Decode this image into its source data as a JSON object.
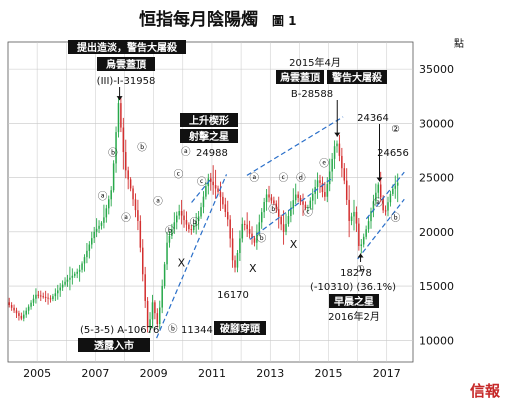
{
  "header": {
    "title": "恒指每月陰陽燭",
    "figure": "圖 1",
    "unit": "點"
  },
  "brand": "信報",
  "chart_data": {
    "type": "candlestick",
    "title": "恒指每月陰陽燭",
    "xlabel": "",
    "ylabel": "點",
    "xlim": [
      2004.0,
      2017.9
    ],
    "ylim": [
      8000,
      37500
    ],
    "x_ticks": [
      2005,
      2007,
      2009,
      2011,
      2013,
      2015,
      2017
    ],
    "y_ticks": [
      10000,
      15000,
      20000,
      25000,
      30000,
      35000
    ],
    "grid": true,
    "key_points": [
      {
        "t": 2004.0,
        "v": 13500
      },
      {
        "t": 2004.5,
        "v": 12000
      },
      {
        "t": 2005.0,
        "v": 14200
      },
      {
        "t": 2005.5,
        "v": 13800
      },
      {
        "t": 2006.0,
        "v": 15400
      },
      {
        "t": 2006.5,
        "v": 16500
      },
      {
        "t": 2007.0,
        "v": 20000
      },
      {
        "t": 2007.3,
        "v": 21000
      },
      {
        "t": 2007.6,
        "v": 24000
      },
      {
        "t": 2007.83,
        "v": 31958
      },
      {
        "t": 2008.05,
        "v": 26000
      },
      {
        "t": 2008.25,
        "v": 24000
      },
      {
        "t": 2008.5,
        "v": 21000
      },
      {
        "t": 2008.85,
        "v": 10676
      },
      {
        "t": 2009.0,
        "v": 13500
      },
      {
        "t": 2009.18,
        "v": 11344
      },
      {
        "t": 2009.5,
        "v": 19000
      },
      {
        "t": 2009.9,
        "v": 22000
      },
      {
        "t": 2010.3,
        "v": 20000
      },
      {
        "t": 2010.6,
        "v": 21500
      },
      {
        "t": 2010.9,
        "v": 24988
      },
      {
        "t": 2011.3,
        "v": 23500
      },
      {
        "t": 2011.6,
        "v": 21000
      },
      {
        "t": 2011.8,
        "v": 16170
      },
      {
        "t": 2012.1,
        "v": 21000
      },
      {
        "t": 2012.5,
        "v": 19000
      },
      {
        "t": 2012.9,
        "v": 23500
      },
      {
        "t": 2013.2,
        "v": 22500
      },
      {
        "t": 2013.5,
        "v": 20000
      },
      {
        "t": 2013.9,
        "v": 23500
      },
      {
        "t": 2014.3,
        "v": 22000
      },
      {
        "t": 2014.7,
        "v": 25000
      },
      {
        "t": 2014.9,
        "v": 23000
      },
      {
        "t": 2015.3,
        "v": 28588
      },
      {
        "t": 2015.6,
        "v": 24500
      },
      {
        "t": 2015.75,
        "v": 21000
      },
      {
        "t": 2015.95,
        "v": 22000
      },
      {
        "t": 2016.1,
        "v": 18278
      },
      {
        "t": 2016.4,
        "v": 20800
      },
      {
        "t": 2016.6,
        "v": 23000
      },
      {
        "t": 2016.75,
        "v": 24364
      },
      {
        "t": 2016.95,
        "v": 21500
      },
      {
        "t": 2017.2,
        "v": 23800
      },
      {
        "t": 2017.45,
        "v": 24656
      }
    ],
    "annotations": [
      {
        "id": "top-warning",
        "text": "提出造淡，警告大屠殺",
        "style": "box"
      },
      {
        "id": "top-cloud",
        "text": "烏雲蓋頂",
        "style": "box"
      },
      {
        "id": "top-value",
        "text": "(III)-I-31958",
        "style": "text"
      },
      {
        "id": "wedge-label",
        "text": "上升楔形",
        "style": "box"
      },
      {
        "id": "shooting-star",
        "text": "射擊之星",
        "style": "box"
      },
      {
        "id": "wave-a-value",
        "text": "24988",
        "style": "text"
      },
      {
        "id": "low-1-value",
        "text": "16170",
        "style": "text"
      },
      {
        "id": "bottom-a-value",
        "text": "(5-3-5) A-10676",
        "style": "text"
      },
      {
        "id": "bottom-buy",
        "text": "透露入市",
        "style": "box"
      },
      {
        "id": "bottom-b-value",
        "text": "11344",
        "style": "text"
      },
      {
        "id": "break-label",
        "text": "破腳穿頭",
        "style": "box"
      },
      {
        "id": "apr2015",
        "text": "2015年4月",
        "style": "text"
      },
      {
        "id": "cloud-2015",
        "text": "烏雲蓋頂",
        "style": "box"
      },
      {
        "id": "warning-2015",
        "text": "警告大屠殺",
        "style": "box"
      },
      {
        "id": "b-value-2015",
        "text": "B-28588",
        "style": "text"
      },
      {
        "id": "high-24364",
        "text": "24364",
        "style": "text"
      },
      {
        "id": "high-24656",
        "text": "24656",
        "style": "text"
      },
      {
        "id": "low-18278",
        "text": "18278",
        "style": "text"
      },
      {
        "id": "drop-18278",
        "text": "(-10310) (36.1%)",
        "style": "text"
      },
      {
        "id": "morning-star",
        "text": "早晨之星",
        "style": "box"
      },
      {
        "id": "feb2016",
        "text": "2016年2月",
        "style": "text"
      }
    ],
    "wave_labels": [
      {
        "text": "ⓑ",
        "t": 2007.6,
        "v": 27000
      },
      {
        "text": "ⓐ",
        "t": 2007.25,
        "v": 23000
      },
      {
        "text": "ⓐ",
        "t": 2008.05,
        "v": 21000
      },
      {
        "text": "ⓑ",
        "t": 2008.6,
        "v": 27500
      },
      {
        "text": "ⓐ",
        "t": 2009.15,
        "v": 22500
      },
      {
        "text": "ⓑ",
        "t": 2009.55,
        "v": 19800
      },
      {
        "text": "ⓒ",
        "t": 2009.85,
        "v": 25000
      },
      {
        "text": "X",
        "t": 2009.95,
        "v": 16800
      },
      {
        "text": "ⓑ",
        "t": 2010.4,
        "v": 20600
      },
      {
        "text": "ⓒ",
        "t": 2010.65,
        "v": 24300
      },
      {
        "text": "X",
        "t": 2012.4,
        "v": 16300
      },
      {
        "text": "ⓐ",
        "t": 2012.45,
        "v": 24700
      },
      {
        "text": "ⓑ",
        "t": 2012.7,
        "v": 19100
      },
      {
        "text": "ⓒ",
        "t": 2013.45,
        "v": 24700
      },
      {
        "text": "ⓓ",
        "t": 2014.05,
        "v": 24700
      },
      {
        "text": "ⓑ",
        "t": 2013.1,
        "v": 21800
      },
      {
        "text": "X",
        "t": 2013.8,
        "v": 18500
      },
      {
        "text": "ⓒ",
        "t": 2014.3,
        "v": 21500
      },
      {
        "text": "ⓔ",
        "t": 2014.85,
        "v": 26000
      },
      {
        "text": "ⓐ",
        "t": 2016.7,
        "v": 22400
      },
      {
        "text": "ⓑ",
        "t": 2017.3,
        "v": 21000
      },
      {
        "text": "①",
        "t": 2016.1,
        "v": 16300
      },
      {
        "text": "②",
        "t": 2017.3,
        "v": 29200
      }
    ],
    "trendlines": [
      {
        "from": {
          "t": 2009.1,
          "v": 10200
        },
        "to": {
          "t": 2011.5,
          "v": 25300
        }
      },
      {
        "from": {
          "t": 2010.3,
          "v": 22700
        },
        "to": {
          "t": 2011.0,
          "v": 25000
        }
      },
      {
        "from": {
          "t": 2012.2,
          "v": 25200
        },
        "to": {
          "t": 2015.5,
          "v": 30600
        }
      },
      {
        "from": {
          "t": 2012.3,
          "v": 19300
        },
        "to": {
          "t": 2015.1,
          "v": 24900
        }
      },
      {
        "from": {
          "t": 2016.0,
          "v": 17500
        },
        "to": {
          "t": 2017.6,
          "v": 23000
        }
      },
      {
        "from": {
          "t": 2016.3,
          "v": 21200
        },
        "to": {
          "t": 2017.6,
          "v": 25500
        }
      }
    ],
    "colors": {
      "up": "#27a84a",
      "down": "#d32f2f",
      "grid": "#c8c8c8",
      "box": "#111111"
    }
  }
}
